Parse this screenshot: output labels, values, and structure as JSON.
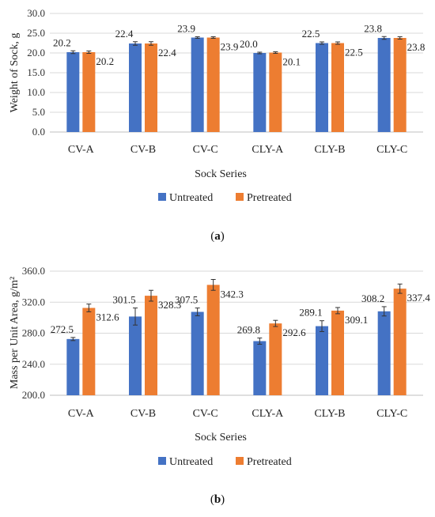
{
  "colors": {
    "untreated": "#4472C4",
    "pretreated": "#ED7D31",
    "grid": "#d9d9d9",
    "error": "#333333"
  },
  "chart_data": [
    {
      "type": "bar",
      "panel": "a",
      "caption": "(a)",
      "categories": [
        "CV-A",
        "CV-B",
        "CV-C",
        "CLY-A",
        "CLY-B",
        "CLY-C"
      ],
      "series": [
        {
          "name": "Untreated",
          "values": [
            20.2,
            22.4,
            23.9,
            20.0,
            22.5,
            23.8
          ],
          "labels": [
            "20.2",
            "22.4",
            "23.9",
            "20.0",
            "22.5",
            "23.8"
          ],
          "errors": [
            0.35,
            0.45,
            0.2,
            0.2,
            0.3,
            0.35
          ]
        },
        {
          "name": "Pretreated",
          "values": [
            20.2,
            22.4,
            23.9,
            20.1,
            22.5,
            23.8
          ],
          "labels": [
            "20.2",
            "22.4",
            "23.9",
            "20.1",
            "22.5",
            "23.8"
          ],
          "errors": [
            0.3,
            0.45,
            0.2,
            0.2,
            0.3,
            0.3
          ]
        }
      ],
      "xlabel": "Sock Series",
      "ylabel": "Weight of Sock, g",
      "ylim": [
        0,
        30
      ],
      "yticks": [
        "0.0",
        "5.0",
        "10.0",
        "15.0",
        "20.0",
        "25.0",
        "30.0"
      ],
      "grid": true,
      "legend": "bottom"
    },
    {
      "type": "bar",
      "panel": "b",
      "caption": "(b)",
      "categories": [
        "CV-A",
        "CV-B",
        "CV-C",
        "CLY-A",
        "CLY-B",
        "CLY-C"
      ],
      "series": [
        {
          "name": "Untreated",
          "values": [
            272.5,
            301.5,
            307.5,
            269.8,
            289.1,
            308.2
          ],
          "labels": [
            "272.5",
            "301.5",
            "307.5",
            "269.8",
            "289.1",
            "308.2"
          ],
          "errors": [
            2,
            11,
            5,
            4,
            7,
            6
          ]
        },
        {
          "name": "Pretreated",
          "values": [
            312.6,
            328.3,
            342.3,
            292.6,
            309.1,
            337.4
          ],
          "labels": [
            "312.6",
            "328.3",
            "342.3",
            "292.6",
            "309.1",
            "337.4"
          ],
          "errors": [
            5,
            7,
            7,
            4,
            4,
            6
          ]
        }
      ],
      "xlabel": "Sock Series",
      "ylabel": "Mass per Unit Area, g/m²",
      "ylim": [
        200,
        360
      ],
      "yticks": [
        "200.0",
        "240.0",
        "280.0",
        "320.0",
        "360.0"
      ],
      "grid": true,
      "legend": "bottom"
    }
  ]
}
